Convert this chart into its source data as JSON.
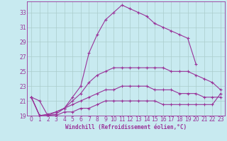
{
  "xlabel": "Windchill (Refroidissement éolien,°C)",
  "bg_color": "#c8eaf0",
  "line_color": "#993399",
  "grid_color": "#aacccc",
  "spine_color": "#993399",
  "xmin": -0.5,
  "xmax": 23.5,
  "ymin": 19,
  "ymax": 34.5,
  "yticks": [
    19,
    21,
    23,
    25,
    27,
    29,
    31,
    33
  ],
  "xticks": [
    0,
    1,
    2,
    3,
    4,
    5,
    6,
    7,
    8,
    9,
    10,
    11,
    12,
    13,
    14,
    15,
    16,
    17,
    18,
    19,
    20,
    21,
    22,
    23
  ],
  "series": [
    [
      21.5,
      21.0,
      19.0,
      19.2,
      20.0,
      21.5,
      23.0,
      27.5,
      30.0,
      32.0,
      33.0,
      34.0,
      33.5,
      33.0,
      32.5,
      31.5,
      31.0,
      30.5,
      30.0,
      29.5,
      26.0,
      null,
      null,
      null
    ],
    [
      21.5,
      19.0,
      19.2,
      19.5,
      20.0,
      21.0,
      22.0,
      23.5,
      24.5,
      25.0,
      25.5,
      25.5,
      25.5,
      25.5,
      25.5,
      25.5,
      25.5,
      25.0,
      25.0,
      25.0,
      24.5,
      24.0,
      23.5,
      22.5
    ],
    [
      21.5,
      19.0,
      19.0,
      19.5,
      20.0,
      20.5,
      21.0,
      21.5,
      22.0,
      22.5,
      22.5,
      23.0,
      23.0,
      23.0,
      23.0,
      22.5,
      22.5,
      22.5,
      22.0,
      22.0,
      22.0,
      21.5,
      21.5,
      21.5
    ],
    [
      21.5,
      19.0,
      19.0,
      19.0,
      19.5,
      19.5,
      20.0,
      20.0,
      20.5,
      21.0,
      21.0,
      21.0,
      21.0,
      21.0,
      21.0,
      21.0,
      20.5,
      20.5,
      20.5,
      20.5,
      20.5,
      20.5,
      20.5,
      22.0
    ]
  ],
  "tick_fontsize": 5.5,
  "xlabel_fontsize": 5.5
}
